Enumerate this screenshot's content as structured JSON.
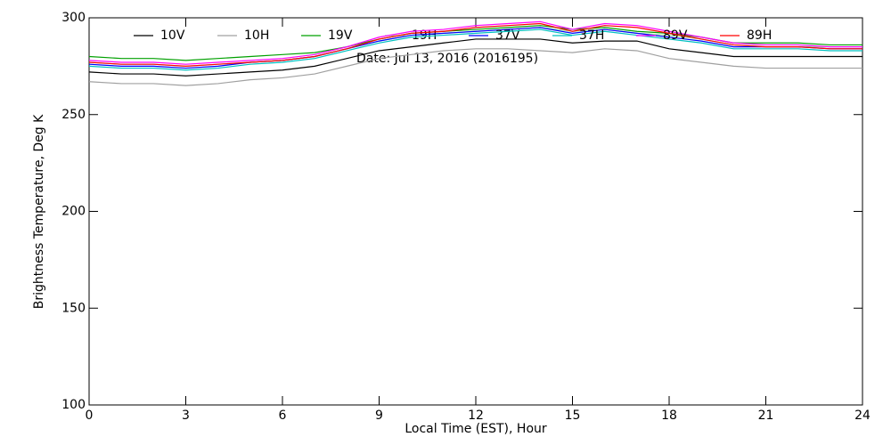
{
  "chart_data": {
    "type": "line",
    "x": [
      0,
      1,
      2,
      3,
      4,
      5,
      6,
      7,
      8,
      9,
      10,
      11,
      12,
      13,
      14,
      15,
      16,
      17,
      18,
      19,
      20,
      21,
      22,
      23,
      24
    ],
    "series": [
      {
        "name": "10V",
        "color": "#000000",
        "values": [
          272,
          271,
          271,
          270,
          271,
          272,
          273,
          275,
          279,
          283,
          285,
          287,
          289,
          289,
          289,
          287,
          288,
          288,
          284,
          282,
          280,
          280,
          280,
          280,
          280
        ]
      },
      {
        "name": "10H",
        "color": "#a0a0a0",
        "values": [
          267,
          266,
          266,
          265,
          266,
          268,
          269,
          271,
          275,
          279,
          281,
          283,
          284,
          284,
          283,
          282,
          284,
          283,
          279,
          277,
          275,
          274,
          274,
          274,
          274
        ]
      },
      {
        "name": "19V",
        "color": "#00a000",
        "values": [
          280,
          279,
          279,
          278,
          279,
          280,
          281,
          282,
          285,
          289,
          292,
          293,
          294,
          295,
          296,
          294,
          295,
          293,
          292,
          290,
          287,
          287,
          287,
          286,
          286
        ]
      },
      {
        "name": "19H",
        "color": "#a0e8a0",
        "values": [
          277,
          276,
          276,
          275,
          276,
          277,
          278,
          280,
          284,
          288,
          291,
          292,
          293,
          294,
          295,
          293,
          294,
          292,
          291,
          289,
          286,
          285,
          285,
          285,
          285
        ]
      },
      {
        "name": "37V",
        "color": "#0000ff",
        "values": [
          276,
          275,
          275,
          274,
          275,
          277,
          278,
          280,
          284,
          288,
          291,
          292,
          293,
          294,
          295,
          292,
          294,
          292,
          290,
          288,
          285,
          285,
          285,
          284,
          284
        ]
      },
      {
        "name": "37H",
        "color": "#00c0c0",
        "values": [
          275,
          274,
          274,
          273,
          274,
          276,
          277,
          279,
          283,
          287,
          290,
          291,
          292,
          293,
          294,
          291,
          293,
          291,
          289,
          287,
          284,
          284,
          284,
          283,
          283
        ]
      },
      {
        "name": "89V",
        "color": "#ff00ff",
        "values": [
          278,
          277,
          277,
          276,
          277,
          278,
          279,
          281,
          285,
          290,
          293,
          294,
          296,
          297,
          298,
          294,
          297,
          296,
          293,
          290,
          287,
          286,
          286,
          285,
          285
        ]
      },
      {
        "name": "89H",
        "color": "#ff0000",
        "values": [
          277,
          276,
          276,
          275,
          276,
          277,
          278,
          280,
          284,
          289,
          292,
          293,
          295,
          296,
          297,
          293,
          296,
          295,
          292,
          289,
          286,
          285,
          285,
          284,
          284
        ]
      }
    ],
    "annotation": "Date: Jul 13, 2016 (2016195)",
    "x_label": "Local Time (EST), Hour",
    "y_label": "Brightness Temperature, Deg K",
    "xlim": [
      0,
      24
    ],
    "xticks": [
      0,
      3,
      6,
      9,
      12,
      15,
      18,
      21,
      24
    ],
    "ylim": [
      100,
      300
    ],
    "yticks": [
      100,
      150,
      200,
      250,
      300
    ]
  }
}
